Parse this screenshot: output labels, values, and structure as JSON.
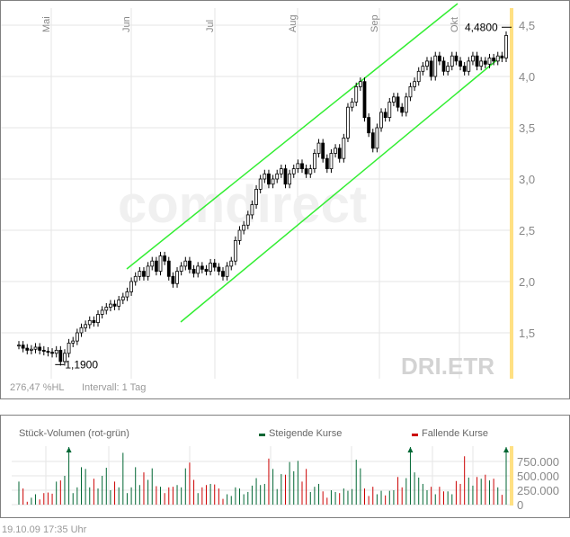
{
  "chart_data": {
    "type": "candlestick",
    "symbol": "DRI.ETR",
    "watermark": "comdirect",
    "months": [
      "Mai",
      "Jun",
      "Jul",
      "Aug",
      "Sep",
      "Okt"
    ],
    "yticks": [
      "1,5",
      "2,0",
      "2,5",
      "3,0",
      "3,5",
      "4,0",
      "4,5"
    ],
    "ytick_values": [
      1.5,
      2.0,
      2.5,
      3.0,
      3.5,
      4.0,
      4.5
    ],
    "ylim": [
      1.1,
      4.6
    ],
    "low_label": "1,1900",
    "low_value": 1.19,
    "high_label": "4,4800",
    "high_value": 4.48,
    "stat": "276,47 %HL",
    "interval": "Intervall: 1 Tag",
    "closes": [
      1.38,
      1.35,
      1.33,
      1.34,
      1.36,
      1.33,
      1.32,
      1.31,
      1.3,
      1.33,
      1.22,
      1.3,
      1.4,
      1.42,
      1.5,
      1.55,
      1.58,
      1.62,
      1.6,
      1.68,
      1.72,
      1.75,
      1.78,
      1.76,
      1.82,
      1.85,
      1.9,
      2.0,
      2.05,
      2.1,
      2.05,
      2.15,
      2.2,
      2.1,
      2.25,
      2.2,
      2.05,
      1.98,
      2.1,
      2.15,
      2.2,
      2.12,
      2.08,
      2.15,
      2.12,
      2.1,
      2.18,
      2.14,
      2.1,
      2.05,
      2.15,
      2.2,
      2.4,
      2.5,
      2.55,
      2.65,
      2.75,
      2.9,
      3.0,
      3.05,
      2.95,
      3.0,
      3.05,
      3.1,
      2.95,
      3.05,
      3.1,
      3.15,
      3.1,
      3.05,
      3.1,
      3.25,
      3.35,
      3.2,
      3.1,
      3.25,
      3.3,
      3.2,
      3.4,
      3.7,
      3.75,
      3.9,
      3.95,
      3.6,
      3.45,
      3.3,
      3.5,
      3.65,
      3.6,
      3.75,
      3.8,
      3.7,
      3.65,
      3.8,
      3.9,
      3.95,
      4.05,
      4.1,
      4.15,
      4.0,
      4.2,
      4.15,
      4.05,
      4.1,
      4.2,
      4.15,
      4.1,
      4.05,
      4.15,
      4.2,
      4.1,
      4.15,
      4.12,
      4.18,
      4.15,
      4.2,
      4.18,
      4.4
    ],
    "volume": {
      "title": "Stück-Volumen (rot-grün)",
      "legend_up": "Steigende Kurse",
      "legend_down": "Fallende Kurse",
      "color_up": "#006633",
      "color_down": "#cc0000",
      "yticks": [
        "0",
        "250.000",
        "500.000",
        "750.000"
      ],
      "ytick_values": [
        0,
        250000,
        500000,
        750000
      ],
      "max": 1000000,
      "values": [
        400000,
        280000,
        50000,
        120000,
        180000,
        90000,
        200000,
        210000,
        190000,
        400000,
        420000,
        500000,
        1100000,
        200000,
        300000,
        650000,
        620000,
        300000,
        450000,
        280000,
        500000,
        640000,
        250000,
        400000,
        300000,
        900000,
        200000,
        300000,
        650000,
        340000,
        560000,
        430000,
        630000,
        320000,
        310000,
        200000,
        300000,
        310000,
        340000,
        300000,
        630000,
        730000,
        430000,
        200000,
        300000,
        340000,
        360000,
        350000,
        280000,
        100000,
        180000,
        150000,
        300000,
        280000,
        180000,
        220000,
        330000,
        460000,
        340000,
        360000,
        800000,
        620000,
        270000,
        530000,
        520000,
        740000,
        580000,
        760000,
        400000,
        620000,
        220000,
        310000,
        360000,
        230000,
        120000,
        250000,
        220000,
        200000,
        280000,
        240000,
        270000,
        780000,
        630000,
        280000,
        150000,
        310000,
        180000,
        240000,
        160000,
        240000,
        250000,
        480000,
        300000,
        460000,
        1100000,
        560000,
        470000,
        360000,
        250000,
        310000,
        180000,
        310000,
        230000,
        230000,
        180000,
        410000,
        360000,
        840000,
        470000,
        330000,
        480000,
        450000,
        520000,
        420000,
        450000,
        300000,
        170000,
        1100000
      ]
    }
  },
  "footer": {
    "date": "19.10.09",
    "time": "17:35 Uhr"
  }
}
